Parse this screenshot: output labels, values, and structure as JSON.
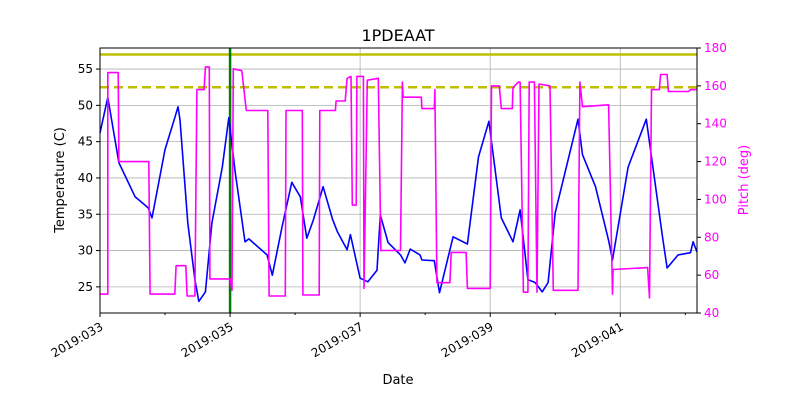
{
  "chart_data": {
    "type": "line",
    "title": "1PDEAAT",
    "xlabel": "Date",
    "ylabel": "Temperature (C)",
    "ylabel_right": "Pitch (deg)",
    "xlim": [
      33,
      42.18
    ],
    "ylim": [
      21.4,
      57.9
    ],
    "ylim_right": [
      40,
      180
    ],
    "grid": true,
    "x_ticks": [
      {
        "value": 33,
        "label": "2019:033"
      },
      {
        "value": 35,
        "label": "2019:035"
      },
      {
        "value": 37,
        "label": "2019:037"
      },
      {
        "value": 39,
        "label": "2019:039"
      },
      {
        "value": 41,
        "label": "2019:041"
      }
    ],
    "x_minor_ticks": [
      34,
      36,
      38,
      40,
      42
    ],
    "y_ticks": [
      25,
      30,
      35,
      40,
      45,
      50,
      55
    ],
    "y_ticks_right": [
      40,
      60,
      80,
      100,
      120,
      140,
      160,
      180
    ],
    "colors": {
      "temperature": "#0000ff",
      "pitch": "#ff00ff",
      "limit": "#bfbf00",
      "marker": "#008000",
      "grid": "#b0b0b0"
    },
    "reference_lines": [
      {
        "axis": "y",
        "value": 57,
        "style": "solid",
        "color": "#bfbf00"
      },
      {
        "axis": "y",
        "value": 52.5,
        "style": "dashed",
        "color": "#bfbf00"
      },
      {
        "axis": "x",
        "value": 35.0,
        "style": "solid",
        "color": "#008000"
      }
    ],
    "series": [
      {
        "axis": "left",
        "color": "#0000ff",
        "x": [
          33.0,
          33.12,
          33.29,
          33.54,
          33.74,
          33.8,
          34.0,
          34.15,
          34.2,
          34.23,
          34.35,
          34.46,
          34.52,
          34.62,
          34.72,
          34.88,
          34.98,
          35.08,
          35.23,
          35.29,
          35.57,
          35.65,
          35.8,
          35.95,
          36.08,
          36.18,
          36.28,
          36.43,
          36.58,
          36.65,
          36.8,
          36.85,
          37.0,
          37.12,
          37.26,
          37.31,
          37.43,
          37.62,
          37.69,
          37.77,
          37.92,
          37.95,
          38.14,
          38.22,
          38.43,
          38.65,
          38.82,
          38.98,
          39.17,
          39.35,
          39.46,
          39.58,
          39.69,
          39.8,
          39.89,
          40.0,
          40.35,
          40.42,
          40.62,
          40.82,
          40.88,
          41.12,
          41.4,
          41.65,
          41.72,
          41.89,
          42.08,
          42.12,
          42.18
        ],
        "y": [
          46.2,
          51.1,
          42.1,
          37.4,
          35.9,
          34.5,
          43.9,
          48.3,
          49.8,
          48.0,
          33.8,
          26.0,
          23.0,
          24.3,
          33.8,
          41.5,
          48.3,
          40.7,
          31.2,
          31.6,
          29.4,
          26.6,
          33.3,
          39.4,
          37.4,
          31.7,
          34.2,
          38.8,
          34.2,
          32.6,
          30.1,
          32.2,
          26.2,
          25.7,
          27.3,
          34.9,
          31.1,
          29.4,
          28.3,
          30.2,
          29.4,
          28.7,
          28.6,
          24.2,
          31.9,
          30.9,
          42.9,
          47.8,
          34.5,
          31.2,
          35.6,
          26.0,
          25.6,
          24.3,
          25.6,
          35.2,
          48.1,
          43.2,
          38.8,
          31.4,
          28.7,
          41.5,
          48.1,
          31.9,
          27.6,
          29.4,
          29.7,
          31.2,
          29.8
        ]
      },
      {
        "axis": "right",
        "color": "#ff00ff",
        "x": [
          33.0,
          33.12,
          33.12,
          33.28,
          33.29,
          33.75,
          33.77,
          34.15,
          34.17,
          34.32,
          34.34,
          34.46,
          34.49,
          34.6,
          34.62,
          34.68,
          34.69,
          35.0,
          35.03,
          35.05,
          35.18,
          35.25,
          35.58,
          35.6,
          35.85,
          35.86,
          36.11,
          36.12,
          36.37,
          36.38,
          36.62,
          36.63,
          36.77,
          36.8,
          36.86,
          36.88,
          36.94,
          36.95,
          37.05,
          37.06,
          37.11,
          37.28,
          37.32,
          37.62,
          37.65,
          37.66,
          37.94,
          37.95,
          38.14,
          38.15,
          38.18,
          38.38,
          38.4,
          38.63,
          38.65,
          39.0,
          39.02,
          39.14,
          39.17,
          39.34,
          39.35,
          39.43,
          39.46,
          39.51,
          39.58,
          39.6,
          39.68,
          39.72,
          39.75,
          39.92,
          39.97,
          40.35,
          40.38,
          40.42,
          40.82,
          40.88,
          40.89,
          41.42,
          41.45,
          41.48,
          41.6,
          41.62,
          41.72,
          41.74,
          42.05,
          42.08,
          42.18
        ],
        "y": [
          50,
          50,
          167,
          167,
          120,
          120,
          50,
          50,
          65,
          65,
          49,
          49,
          158,
          158,
          170,
          170,
          58,
          58,
          52,
          169,
          168,
          147,
          147,
          49,
          49,
          147,
          147,
          49.5,
          49.5,
          147,
          147,
          152,
          152,
          164,
          165,
          97,
          97,
          165,
          165,
          53,
          163,
          164,
          73,
          73,
          162,
          154,
          154,
          148,
          148,
          158,
          56,
          56,
          72,
          72,
          53,
          53,
          160,
          160,
          148,
          148,
          159,
          162,
          162,
          51,
          51,
          162,
          162,
          51,
          161,
          160,
          52,
          52,
          162,
          149,
          150,
          50,
          63,
          64,
          48,
          158,
          158,
          166,
          166,
          157,
          157,
          158,
          158
        ]
      }
    ]
  }
}
